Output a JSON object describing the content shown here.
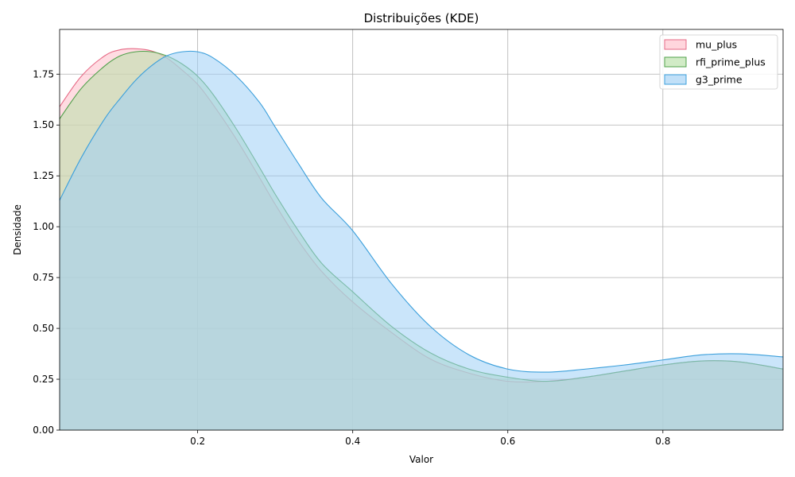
{
  "chart_data": {
    "type": "area",
    "title": "Distribuições (KDE)",
    "xlabel": "Valor",
    "ylabel": "Densidade",
    "xlim": [
      0.022,
      0.955
    ],
    "ylim": [
      0,
      1.97
    ],
    "xticks": [
      0.2,
      0.4,
      0.6,
      0.8
    ],
    "xtick_labels": [
      "0.2",
      "0.4",
      "0.6",
      "0.8"
    ],
    "yticks": [
      0,
      0.25,
      0.5,
      0.75,
      1.0,
      1.25,
      1.5,
      1.75
    ],
    "ytick_labels": [
      "0.00",
      "0.25",
      "0.50",
      "0.75",
      "1.00",
      "1.25",
      "1.50",
      "1.75"
    ],
    "grid": true,
    "legend_position": "top-right",
    "series": [
      {
        "name": "mu_plus",
        "fill": "#ffc0cb",
        "stroke": "#e66a86",
        "fill_opacity": 0.55,
        "x": [
          0.022,
          0.05,
          0.08,
          0.1,
          0.12,
          0.14,
          0.16,
          0.18,
          0.2,
          0.22,
          0.25,
          0.28,
          0.3,
          0.33,
          0.36,
          0.4,
          0.45,
          0.5,
          0.55,
          0.6,
          0.65,
          0.7,
          0.75,
          0.8,
          0.85,
          0.9,
          0.955
        ],
        "y": [
          1.59,
          1.74,
          1.84,
          1.87,
          1.875,
          1.865,
          1.83,
          1.77,
          1.7,
          1.6,
          1.43,
          1.24,
          1.11,
          0.93,
          0.78,
          0.63,
          0.48,
          0.35,
          0.28,
          0.24,
          0.24,
          0.26,
          0.29,
          0.32,
          0.34,
          0.335,
          0.3
        ]
      },
      {
        "name": "rfi_prime_plus",
        "fill": "#b8e0a8",
        "stroke": "#4fa04a",
        "fill_opacity": 0.55,
        "x": [
          0.022,
          0.05,
          0.08,
          0.1,
          0.12,
          0.14,
          0.16,
          0.18,
          0.2,
          0.22,
          0.25,
          0.28,
          0.3,
          0.33,
          0.36,
          0.4,
          0.45,
          0.5,
          0.55,
          0.6,
          0.65,
          0.7,
          0.75,
          0.8,
          0.85,
          0.9,
          0.955
        ],
        "y": [
          1.53,
          1.68,
          1.79,
          1.84,
          1.86,
          1.86,
          1.84,
          1.8,
          1.74,
          1.65,
          1.48,
          1.29,
          1.16,
          0.98,
          0.82,
          0.68,
          0.51,
          0.38,
          0.3,
          0.26,
          0.24,
          0.26,
          0.29,
          0.32,
          0.34,
          0.335,
          0.3
        ]
      },
      {
        "name": "g3_prime",
        "fill": "#9fcff5",
        "stroke": "#3b9fdb",
        "fill_opacity": 0.55,
        "x": [
          0.022,
          0.05,
          0.08,
          0.1,
          0.12,
          0.14,
          0.16,
          0.18,
          0.2,
          0.22,
          0.25,
          0.28,
          0.3,
          0.33,
          0.36,
          0.4,
          0.45,
          0.5,
          0.55,
          0.6,
          0.65,
          0.7,
          0.75,
          0.8,
          0.85,
          0.9,
          0.955
        ],
        "y": [
          1.13,
          1.34,
          1.53,
          1.63,
          1.72,
          1.79,
          1.84,
          1.86,
          1.86,
          1.83,
          1.74,
          1.61,
          1.49,
          1.31,
          1.14,
          0.98,
          0.72,
          0.51,
          0.37,
          0.3,
          0.285,
          0.3,
          0.32,
          0.345,
          0.37,
          0.375,
          0.36
        ]
      }
    ]
  }
}
